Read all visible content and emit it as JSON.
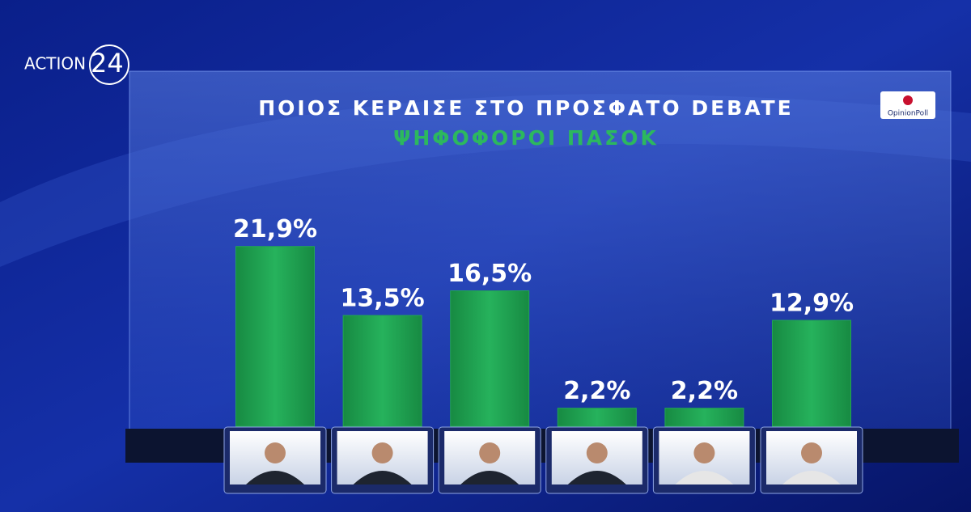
{
  "branding": {
    "channel_name": "ACTION",
    "channel_number": "24",
    "pollster": "OpinionPoll"
  },
  "chart_data": {
    "type": "bar",
    "title": "ΠΟΙΟΣ ΚΕΡΔΙΣΕ ΣΤΟ ΠΡΟΣΦΑΤΟ DEBATE",
    "subtitle": "ΨΗΦΟΦΟΡΟΙ ΠΑΣΟΚ",
    "categories": [
      null,
      null,
      null,
      null,
      null,
      null
    ],
    "values": [
      21.9,
      13.5,
      16.5,
      2.2,
      2.2,
      12.9
    ],
    "value_labels": [
      "21,9%",
      "13,5%",
      "16,5%",
      "2,2%",
      "2,2%",
      "12,9%"
    ],
    "color": "#22a554"
  }
}
